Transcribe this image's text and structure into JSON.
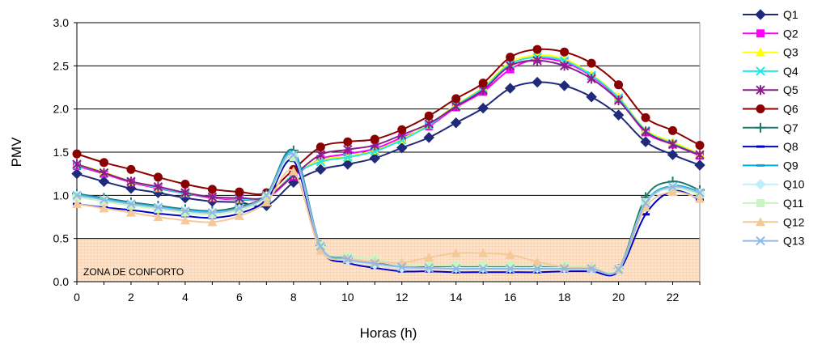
{
  "chart_data": {
    "type": "line",
    "title": "",
    "xlabel": "Horas (h)",
    "ylabel": "PMV",
    "xlim": [
      0,
      23
    ],
    "ylim": [
      0,
      3
    ],
    "xticks": [
      0,
      2,
      4,
      6,
      8,
      10,
      12,
      14,
      16,
      18,
      20,
      22
    ],
    "yticks": [
      0,
      0.5,
      1,
      1.5,
      2,
      2.5,
      3
    ],
    "ytick_labels": [
      "0.0",
      "0.5",
      "1.0",
      "1.5",
      "2.0",
      "2.5",
      "3.0"
    ],
    "grid": "horizontal",
    "legend_position": "right",
    "comfort_zone": {
      "label": "ZONA DE CONFORTO",
      "ymin": 0,
      "ymax": 0.5,
      "color": "#f5cfae"
    },
    "x": [
      0,
      1,
      2,
      3,
      4,
      5,
      6,
      7,
      8,
      9,
      10,
      11,
      12,
      13,
      14,
      15,
      16,
      17,
      18,
      19,
      20,
      21,
      22,
      23
    ],
    "series": [
      {
        "name": "Q1",
        "color": "#1f2a7a",
        "marker": "diamond",
        "values": [
          1.25,
          1.16,
          1.08,
          1.03,
          0.97,
          0.93,
          0.92,
          0.88,
          1.15,
          1.3,
          1.36,
          1.43,
          1.55,
          1.67,
          1.84,
          2.01,
          2.24,
          2.31,
          2.27,
          2.14,
          1.93,
          1.62,
          1.47,
          1.35
        ]
      },
      {
        "name": "Q2",
        "color": "#ff00ff",
        "marker": "square",
        "values": [
          1.34,
          1.25,
          1.15,
          1.08,
          1.02,
          0.97,
          0.95,
          0.97,
          1.22,
          1.42,
          1.48,
          1.54,
          1.67,
          1.8,
          2.02,
          2.2,
          2.46,
          2.58,
          2.54,
          2.38,
          2.12,
          1.73,
          1.59,
          1.46
        ]
      },
      {
        "name": "Q3",
        "color": "#ffff00",
        "marker": "triangle",
        "values": [
          1.36,
          1.27,
          1.16,
          1.09,
          1.03,
          0.98,
          0.96,
          0.98,
          1.24,
          1.41,
          1.45,
          1.52,
          1.65,
          1.82,
          2.05,
          2.25,
          2.54,
          2.62,
          2.58,
          2.4,
          2.14,
          1.76,
          1.62,
          1.48
        ]
      },
      {
        "name": "Q4",
        "color": "#22e6e6",
        "marker": "x",
        "values": [
          1.35,
          1.26,
          1.16,
          1.09,
          1.02,
          0.98,
          0.96,
          0.97,
          1.24,
          1.39,
          1.44,
          1.51,
          1.64,
          1.81,
          2.04,
          2.24,
          2.52,
          2.6,
          2.56,
          2.39,
          2.13,
          1.75,
          1.6,
          1.47
        ]
      },
      {
        "name": "Q5",
        "color": "#8a1f8a",
        "marker": "star",
        "values": [
          1.36,
          1.26,
          1.16,
          1.1,
          1.03,
          0.98,
          0.97,
          0.98,
          1.23,
          1.47,
          1.53,
          1.58,
          1.7,
          1.83,
          2.03,
          2.22,
          2.5,
          2.56,
          2.5,
          2.35,
          2.1,
          1.74,
          1.59,
          1.47
        ]
      },
      {
        "name": "Q6",
        "color": "#8b0000",
        "marker": "circle",
        "values": [
          1.48,
          1.38,
          1.3,
          1.21,
          1.13,
          1.07,
          1.04,
          1.03,
          1.3,
          1.56,
          1.62,
          1.65,
          1.76,
          1.92,
          2.12,
          2.3,
          2.6,
          2.69,
          2.66,
          2.53,
          2.28,
          1.9,
          1.75,
          1.58
        ]
      },
      {
        "name": "Q7",
        "color": "#1f7a6a",
        "marker": "plus",
        "values": [
          1.02,
          0.97,
          0.92,
          0.88,
          0.84,
          0.82,
          0.87,
          1.01,
          1.52,
          0.42,
          0.27,
          0.22,
          0.17,
          0.17,
          0.17,
          0.17,
          0.17,
          0.17,
          0.17,
          0.16,
          0.15,
          0.98,
          1.16,
          1.06
        ]
      },
      {
        "name": "Q8",
        "color": "#0000cc",
        "marker": "dash",
        "values": [
          0.9,
          0.86,
          0.83,
          0.79,
          0.76,
          0.74,
          0.79,
          0.95,
          1.4,
          0.38,
          0.22,
          0.16,
          0.12,
          0.12,
          0.11,
          0.11,
          0.11,
          0.11,
          0.12,
          0.12,
          0.12,
          0.78,
          1.05,
          0.95
        ]
      },
      {
        "name": "Q9",
        "color": "#00aadd",
        "marker": "dash",
        "values": [
          1.01,
          0.96,
          0.91,
          0.87,
          0.83,
          0.81,
          0.85,
          1.0,
          1.5,
          0.41,
          0.26,
          0.21,
          0.16,
          0.16,
          0.16,
          0.16,
          0.16,
          0.16,
          0.16,
          0.15,
          0.14,
          0.92,
          1.11,
          1.04
        ]
      },
      {
        "name": "Q10",
        "color": "#bfefff",
        "marker": "diamond",
        "values": [
          0.99,
          0.94,
          0.89,
          0.85,
          0.81,
          0.79,
          0.84,
          0.99,
          1.46,
          0.4,
          0.25,
          0.2,
          0.16,
          0.16,
          0.16,
          0.16,
          0.16,
          0.16,
          0.16,
          0.15,
          0.14,
          0.9,
          1.09,
          1.02
        ]
      },
      {
        "name": "Q11",
        "color": "#c8f5c0",
        "marker": "square",
        "values": [
          0.98,
          0.93,
          0.88,
          0.84,
          0.8,
          0.78,
          0.83,
          0.98,
          1.44,
          0.42,
          0.3,
          0.26,
          0.2,
          0.19,
          0.19,
          0.19,
          0.19,
          0.19,
          0.18,
          0.17,
          0.15,
          0.92,
          1.08,
          1.01
        ]
      },
      {
        "name": "Q12",
        "color": "#f5c89a",
        "marker": "triangle",
        "values": [
          0.9,
          0.85,
          0.8,
          0.75,
          0.71,
          0.69,
          0.76,
          0.92,
          1.28,
          0.36,
          0.27,
          0.23,
          0.22,
          0.28,
          0.33,
          0.33,
          0.31,
          0.23,
          0.17,
          0.16,
          0.14,
          0.86,
          1.04,
          0.96
        ]
      },
      {
        "name": "Q13",
        "color": "#8fb8e8",
        "marker": "x",
        "values": [
          1.0,
          0.95,
          0.9,
          0.86,
          0.82,
          0.8,
          0.85,
          1.0,
          1.47,
          0.41,
          0.26,
          0.21,
          0.17,
          0.16,
          0.15,
          0.15,
          0.15,
          0.15,
          0.15,
          0.15,
          0.14,
          0.91,
          1.1,
          1.03
        ]
      }
    ]
  }
}
